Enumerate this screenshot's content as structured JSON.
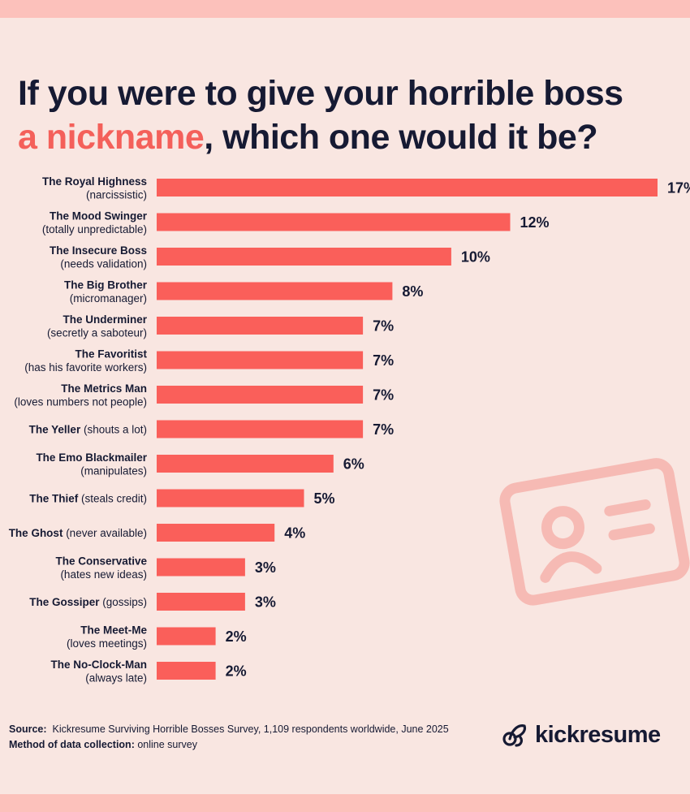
{
  "header": {
    "title_line1": "If you were to give your horrible boss",
    "title_accent": "a nickname",
    "title_rest": ", which one would it be?"
  },
  "chart_data": {
    "type": "bar",
    "orientation": "horizontal",
    "categories": [
      {
        "name": "The Royal Highness",
        "desc": "(narcissistic)",
        "inline": false
      },
      {
        "name": "The Mood Swinger",
        "desc": "(totally unpredictable)",
        "inline": false
      },
      {
        "name": "The Insecure Boss",
        "desc": "(needs validation)",
        "inline": false
      },
      {
        "name": "The Big Brother",
        "desc": "(micromanager)",
        "inline": false
      },
      {
        "name": "The Underminer",
        "desc": "(secretly a saboteur)",
        "inline": false
      },
      {
        "name": "The Favoritist",
        "desc": "(has his favorite workers)",
        "inline": false
      },
      {
        "name": "The Metrics Man",
        "desc": "(loves numbers not people)",
        "inline": false
      },
      {
        "name": "The Yeller",
        "desc": "(shouts a lot)",
        "inline": true
      },
      {
        "name": "The Emo Blackmailer",
        "desc": "(manipulates)",
        "inline": false
      },
      {
        "name": "The Thief",
        "desc": "(steals credit)",
        "inline": true
      },
      {
        "name": "The Ghost",
        "desc": "(never available)",
        "inline": true
      },
      {
        "name": "The Conservative",
        "desc": "(hates new ideas)",
        "inline": false
      },
      {
        "name": "The Gossiper",
        "desc": "(gossips)",
        "inline": true
      },
      {
        "name": "The Meet-Me",
        "desc": "(loves meetings)",
        "inline": false
      },
      {
        "name": "The No-Clock-Man",
        "desc": "(always late)",
        "inline": false
      }
    ],
    "values": [
      17,
      12,
      10,
      8,
      7,
      7,
      7,
      7,
      6,
      5,
      4,
      3,
      3,
      2,
      2
    ],
    "value_labels": [
      "17%",
      "12%",
      "10%",
      "8%",
      "7%",
      "7%",
      "7%",
      "7%",
      "6%",
      "5%",
      "4%",
      "3%",
      "3%",
      "2%",
      "2%"
    ],
    "unit": "%",
    "bar_color": "#fa5f5a"
  },
  "footer": {
    "source_label": "Source:",
    "source_text": "Kickresume Surviving Horrible Bosses Survey, 1,109 respondents worldwide, June 2025",
    "method_label": "Method of data collection:",
    "method_text": "online survey"
  },
  "brand": {
    "logo_text": "kickresume",
    "logo_icon": "kickresume-logo-icon",
    "watermark_icon": "id-card-icon"
  },
  "colors": {
    "background": "#f9e6e1",
    "accent": "#f4605a",
    "band": "#fcc1bb",
    "text": "#161a33"
  }
}
